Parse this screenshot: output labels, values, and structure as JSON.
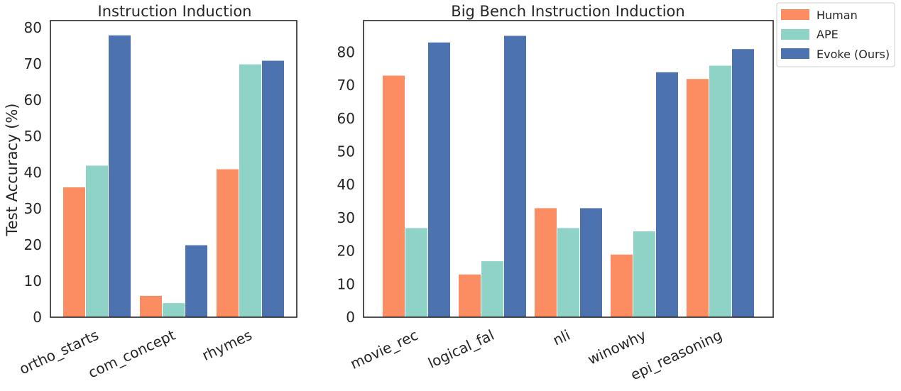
{
  "legend": {
    "position": "outside-right-top",
    "items": [
      {
        "label": "Human",
        "color": "#fc8d62"
      },
      {
        "label": "APE",
        "color": "#8fd3c7"
      },
      {
        "label": "Evoke (Ours)",
        "color": "#4c72b0"
      }
    ]
  },
  "chart_data": [
    {
      "type": "bar",
      "title": "Instruction Induction",
      "ylabel": "Test Accuracy (%)",
      "xlabel": "",
      "ylim": [
        0,
        82
      ],
      "yticks": [
        0,
        10,
        20,
        30,
        40,
        50,
        60,
        70,
        80
      ],
      "grid": false,
      "categories": [
        "ortho_starts",
        "com_concept",
        "rhymes"
      ],
      "series": [
        {
          "name": "Human",
          "color": "#fc8d62",
          "values": [
            36,
            6,
            41
          ]
        },
        {
          "name": "APE",
          "color": "#8fd3c7",
          "values": [
            42,
            4,
            70
          ]
        },
        {
          "name": "Evoke (Ours)",
          "color": "#4c72b0",
          "values": [
            78,
            20,
            71
          ]
        }
      ]
    },
    {
      "type": "bar",
      "title": "Big Bench Instruction Induction",
      "ylabel": "",
      "xlabel": "",
      "ylim": [
        0,
        89.5
      ],
      "yticks": [
        0,
        10,
        20,
        30,
        40,
        50,
        60,
        70,
        80
      ],
      "grid": false,
      "categories": [
        "movie_rec",
        "logical_fal",
        "nli",
        "winowhy",
        "epi_reasoning"
      ],
      "series": [
        {
          "name": "Human",
          "color": "#fc8d62",
          "values": [
            73,
            13,
            33,
            19,
            72
          ]
        },
        {
          "name": "APE",
          "color": "#8fd3c7",
          "values": [
            27,
            17,
            27,
            26,
            76
          ]
        },
        {
          "name": "Evoke (Ours)",
          "color": "#4c72b0",
          "values": [
            83,
            85,
            33,
            74,
            81
          ]
        }
      ]
    }
  ]
}
